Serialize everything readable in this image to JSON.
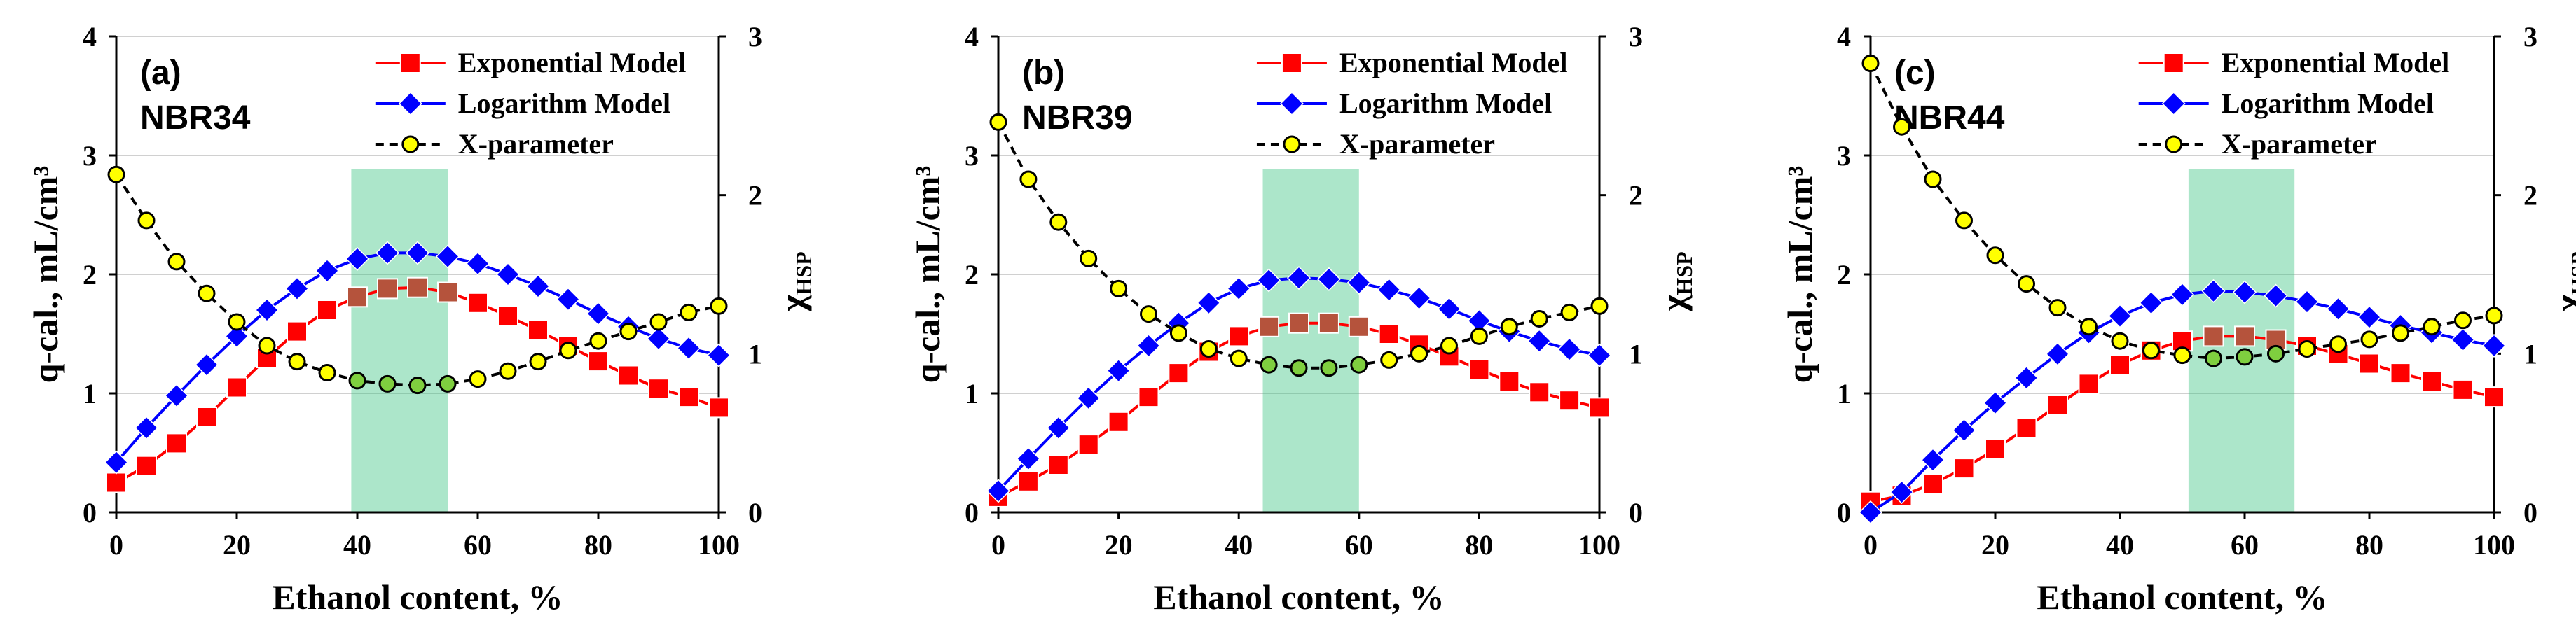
{
  "figure": {
    "colors": {
      "exponential": "#ff0000",
      "exponential_overlap": "#b5533c",
      "logarithm": "#0000ff",
      "xparam": "#000000",
      "xparam_fill": "#ffff00",
      "xparam_overlap_fill": "#7fcf3f",
      "highlight": "#2fc17a"
    }
  },
  "chart_data": [
    {
      "type": "line",
      "panel_label": "(a)",
      "sample": "NBR34",
      "xlabel": "Ethanol content, %",
      "ylabel": "q-cal., mL/cm³",
      "y2label": "χ",
      "y2label_sub": "HSP",
      "xlim": [
        0,
        100
      ],
      "ylim": [
        0,
        4
      ],
      "y2lim": [
        0,
        3
      ],
      "xticks": [
        "0",
        "20",
        "40",
        "60",
        "80",
        "100"
      ],
      "yticks": [
        "0",
        "1",
        "2",
        "3",
        "4"
      ],
      "y2ticks": [
        "0",
        "1",
        "2",
        "3"
      ],
      "grid": true,
      "legend_position": "top-right",
      "highlight_range": [
        39,
        55
      ],
      "x": [
        0,
        5,
        10,
        15,
        20,
        25,
        30,
        35,
        40,
        45,
        50,
        55,
        60,
        65,
        70,
        75,
        80,
        85,
        90,
        95,
        100
      ],
      "series": [
        {
          "name": "Exponential Model",
          "axis": "left",
          "marker": "square",
          "values": [
            0.25,
            0.39,
            0.58,
            0.8,
            1.05,
            1.3,
            1.52,
            1.7,
            1.81,
            1.88,
            1.89,
            1.85,
            1.76,
            1.65,
            1.53,
            1.4,
            1.27,
            1.15,
            1.04,
            0.97,
            0.88
          ]
        },
        {
          "name": "Logarithm Model",
          "axis": "left",
          "marker": "diamond",
          "values": [
            0.42,
            0.71,
            0.98,
            1.24,
            1.48,
            1.7,
            1.88,
            2.03,
            2.13,
            2.18,
            2.18,
            2.15,
            2.09,
            2.0,
            1.9,
            1.79,
            1.67,
            1.56,
            1.46,
            1.38,
            1.32
          ]
        },
        {
          "name": "X-parameter",
          "axis": "right",
          "marker": "circle",
          "dashed": true,
          "values": [
            2.13,
            1.84,
            1.58,
            1.38,
            1.2,
            1.05,
            0.95,
            0.88,
            0.83,
            0.81,
            0.8,
            0.81,
            0.84,
            0.89,
            0.95,
            1.02,
            1.08,
            1.14,
            1.2,
            1.26,
            1.3
          ]
        }
      ]
    },
    {
      "type": "line",
      "panel_label": "(b)",
      "sample": "NBR39",
      "xlabel": "Ethanol content, %",
      "ylabel": "q-cal., mL/cm³",
      "y2label": "χ",
      "y2label_sub": "HSP",
      "xlim": [
        0,
        100
      ],
      "ylim": [
        0,
        4
      ],
      "y2lim": [
        0,
        3
      ],
      "xticks": [
        "0",
        "20",
        "40",
        "60",
        "80",
        "100"
      ],
      "yticks": [
        "0",
        "1",
        "2",
        "3",
        "4"
      ],
      "y2ticks": [
        "0",
        "1",
        "2",
        "3"
      ],
      "grid": true,
      "legend_position": "top-right",
      "highlight_range": [
        44,
        60
      ],
      "x": [
        0,
        5,
        10,
        15,
        20,
        25,
        30,
        35,
        40,
        45,
        50,
        55,
        60,
        65,
        70,
        75,
        80,
        85,
        90,
        95,
        100
      ],
      "series": [
        {
          "name": "Exponential Model",
          "axis": "left",
          "marker": "square",
          "values": [
            0.13,
            0.26,
            0.4,
            0.57,
            0.76,
            0.97,
            1.17,
            1.35,
            1.48,
            1.56,
            1.59,
            1.59,
            1.56,
            1.5,
            1.41,
            1.31,
            1.2,
            1.1,
            1.01,
            0.94,
            0.88
          ]
        },
        {
          "name": "Logarithm Model",
          "axis": "left",
          "marker": "diamond",
          "values": [
            0.18,
            0.45,
            0.71,
            0.96,
            1.19,
            1.4,
            1.59,
            1.76,
            1.88,
            1.95,
            1.97,
            1.96,
            1.93,
            1.87,
            1.8,
            1.71,
            1.61,
            1.52,
            1.44,
            1.37,
            1.32
          ]
        },
        {
          "name": "X-parameter",
          "axis": "right",
          "marker": "circle",
          "dashed": true,
          "values": [
            2.46,
            2.1,
            1.83,
            1.6,
            1.41,
            1.25,
            1.13,
            1.03,
            0.97,
            0.93,
            0.91,
            0.91,
            0.93,
            0.96,
            1.0,
            1.05,
            1.11,
            1.17,
            1.22,
            1.26,
            1.3
          ]
        }
      ]
    },
    {
      "type": "line",
      "panel_label": "(c)",
      "sample": "NBR44",
      "xlabel": "Ethanol content, %",
      "ylabel": "q-cal., mL/cm³",
      "y2label": "χ",
      "y2label_sub": "HSP",
      "xlim": [
        0,
        100
      ],
      "ylim": [
        0,
        4
      ],
      "y2lim": [
        0,
        3
      ],
      "xticks": [
        "0",
        "20",
        "40",
        "60",
        "80",
        "100"
      ],
      "yticks": [
        "0",
        "1",
        "2",
        "3",
        "4"
      ],
      "y2ticks": [
        "0",
        "1",
        "2",
        "3"
      ],
      "grid": true,
      "legend_position": "top-right",
      "highlight_range": [
        51,
        68
      ],
      "x": [
        0,
        5,
        10,
        15,
        20,
        25,
        30,
        35,
        40,
        45,
        50,
        55,
        60,
        65,
        70,
        75,
        80,
        85,
        90,
        95,
        100
      ],
      "series": [
        {
          "name": "Exponential Model",
          "axis": "left",
          "marker": "square",
          "values": [
            0.09,
            0.14,
            0.24,
            0.37,
            0.53,
            0.71,
            0.9,
            1.08,
            1.24,
            1.36,
            1.44,
            1.48,
            1.48,
            1.45,
            1.4,
            1.33,
            1.25,
            1.17,
            1.1,
            1.03,
            0.97
          ]
        },
        {
          "name": "Logarithm Model",
          "axis": "left",
          "marker": "diamond",
          "values": [
            0.0,
            0.17,
            0.44,
            0.69,
            0.92,
            1.13,
            1.33,
            1.51,
            1.65,
            1.76,
            1.83,
            1.86,
            1.85,
            1.82,
            1.77,
            1.71,
            1.64,
            1.57,
            1.51,
            1.45,
            1.4
          ]
        },
        {
          "name": "X-parameter",
          "axis": "right",
          "marker": "circle",
          "dashed": true,
          "values": [
            2.83,
            2.43,
            2.1,
            1.84,
            1.62,
            1.44,
            1.29,
            1.17,
            1.08,
            1.02,
            0.99,
            0.97,
            0.98,
            1.0,
            1.03,
            1.06,
            1.09,
            1.13,
            1.17,
            1.21,
            1.24
          ]
        }
      ]
    }
  ]
}
